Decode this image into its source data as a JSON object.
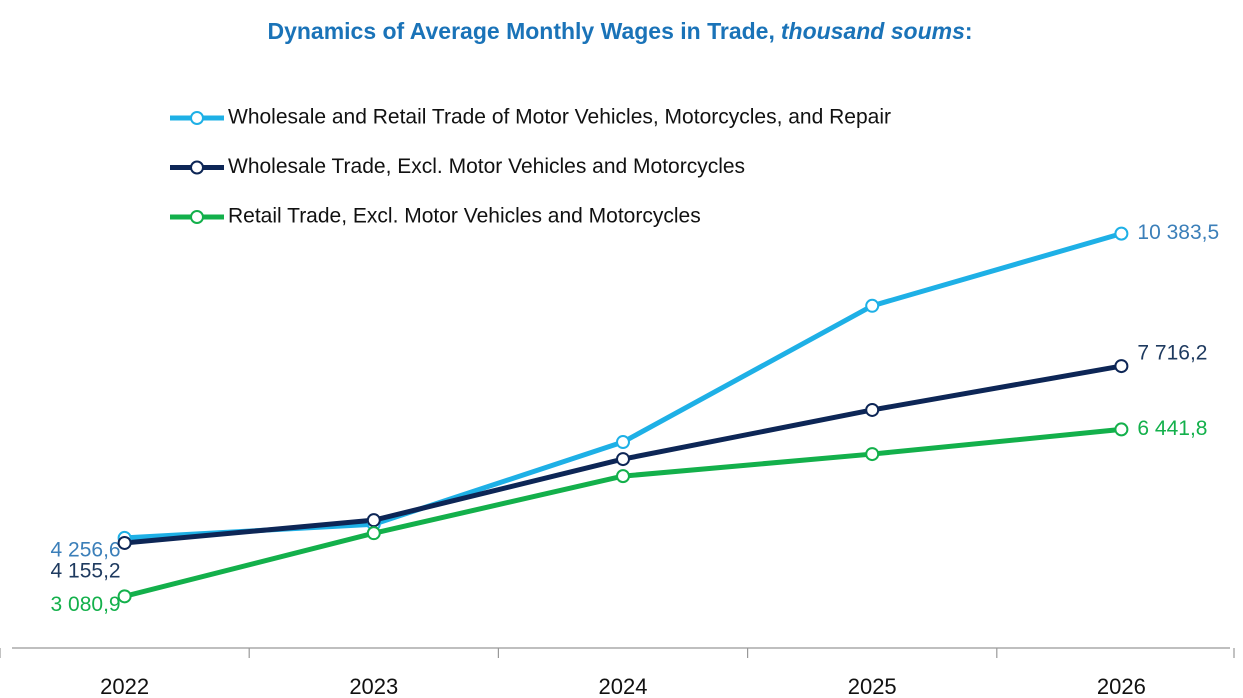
{
  "chart_data": {
    "type": "line",
    "title": [
      "Dynamics of Average Monthly Wages in Trade,",
      "thousand soums",
      ":"
    ],
    "categories": [
      "2022",
      "2023",
      "2024",
      "2025",
      "2026"
    ],
    "ylim": [
      2000,
      11000
    ],
    "series": [
      {
        "name": "Wholesale and Retail Trade of Motor Vehicles, Motorcycles, and Repair",
        "color": "#1eb0e6",
        "label_color": "#3b7fb9",
        "values": [
          4256.6,
          4533,
          6187,
          8930,
          10383.5
        ],
        "value_labels": [
          "4 256,6",
          null,
          null,
          null,
          "10 383,5"
        ]
      },
      {
        "name": "Wholesale Trade, Excl. Motor Vehicles and Motorcycles",
        "color": "#0d2656",
        "label_color": "#1e3a5f",
        "values": [
          4155.2,
          4614,
          5844,
          6833,
          7716.2
        ],
        "value_labels": [
          "4 155,2",
          null,
          null,
          null,
          "7 716,2"
        ]
      },
      {
        "name": "Retail Trade, Excl. Motor Vehicles and Motorcycles",
        "color": "#13b04b",
        "label_color": "#13b04b",
        "values": [
          3080.9,
          4352,
          5501,
          5945,
          6441.8
        ],
        "value_labels": [
          "3 080,9",
          null,
          null,
          null,
          "6 441,8"
        ]
      }
    ]
  }
}
